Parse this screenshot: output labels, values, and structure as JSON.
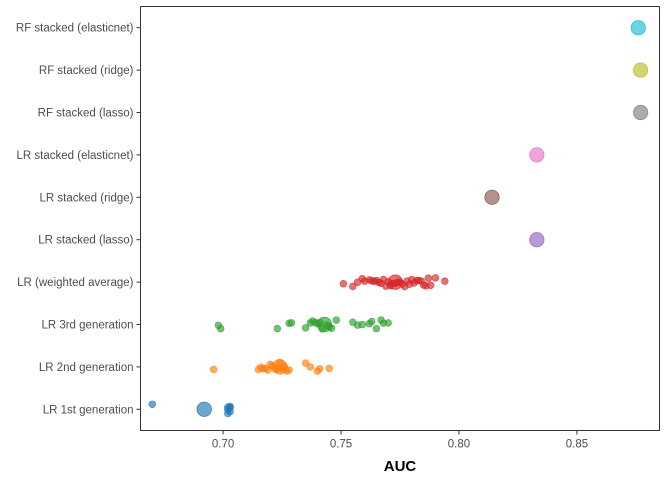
{
  "chart_data": {
    "type": "scatter",
    "xlabel": "AUC",
    "ylabel": "",
    "xlim": [
      0.665,
      0.885
    ],
    "x_ticks": [
      0.7,
      0.75,
      0.8,
      0.85
    ],
    "x_tick_labels": [
      "0.70",
      "0.75",
      "0.80",
      "0.85"
    ],
    "grid": false,
    "categories": [
      "LR 1st generation",
      "LR 2nd generation",
      "LR 3rd generation",
      "LR (weighted average)",
      "LR stacked (lasso)",
      "LR stacked (ridge)",
      "LR stacked (elasticnet)",
      "RF stacked (lasso)",
      "RF stacked (ridge)",
      "RF stacked (elasticnet)"
    ],
    "series": [
      {
        "category": "LR 1st generation",
        "color": "#1f77b4",
        "points": [
          0.67,
          0.702,
          0.702,
          0.703,
          0.703,
          0.702,
          0.703
        ],
        "summary": 0.692
      },
      {
        "category": "LR 2nd generation",
        "color": "#ff7f0e",
        "points": [
          0.696,
          0.715,
          0.716,
          0.717,
          0.718,
          0.719,
          0.72,
          0.721,
          0.722,
          0.723,
          0.724,
          0.725,
          0.726,
          0.727,
          0.728,
          0.735,
          0.737,
          0.74,
          0.741,
          0.745
        ],
        "summary": 0.724
      },
      {
        "category": "LR 3rd generation",
        "color": "#2ca02c",
        "points": [
          0.698,
          0.699,
          0.723,
          0.728,
          0.729,
          0.735,
          0.737,
          0.738,
          0.739,
          0.74,
          0.741,
          0.742,
          0.744,
          0.745,
          0.746,
          0.748,
          0.755,
          0.757,
          0.759,
          0.762,
          0.763,
          0.765,
          0.767,
          0.768,
          0.77
        ],
        "summary": 0.743
      },
      {
        "category": "LR (weighted average)",
        "color": "#d62728",
        "points": [
          0.751,
          0.755,
          0.757,
          0.759,
          0.76,
          0.762,
          0.763,
          0.764,
          0.765,
          0.766,
          0.767,
          0.768,
          0.769,
          0.77,
          0.771,
          0.772,
          0.773,
          0.774,
          0.775,
          0.776,
          0.777,
          0.778,
          0.779,
          0.78,
          0.781,
          0.782,
          0.783,
          0.784,
          0.785,
          0.786,
          0.787,
          0.788,
          0.79,
          0.794
        ],
        "summary": 0.773
      },
      {
        "category": "LR stacked (lasso)",
        "color": "#9467bd",
        "points": [],
        "summary": 0.833
      },
      {
        "category": "LR stacked (ridge)",
        "color": "#8c564b",
        "points": [],
        "summary": 0.814
      },
      {
        "category": "LR stacked (elasticnet)",
        "color": "#e377c2",
        "points": [],
        "summary": 0.833
      },
      {
        "category": "RF stacked (lasso)",
        "color": "#7f7f7f",
        "points": [],
        "summary": 0.877
      },
      {
        "category": "RF stacked (ridge)",
        "color": "#bcbd22",
        "points": [],
        "summary": 0.877
      },
      {
        "category": "RF stacked (elasticnet)",
        "color": "#17becf",
        "points": [],
        "summary": 0.876
      }
    ]
  }
}
